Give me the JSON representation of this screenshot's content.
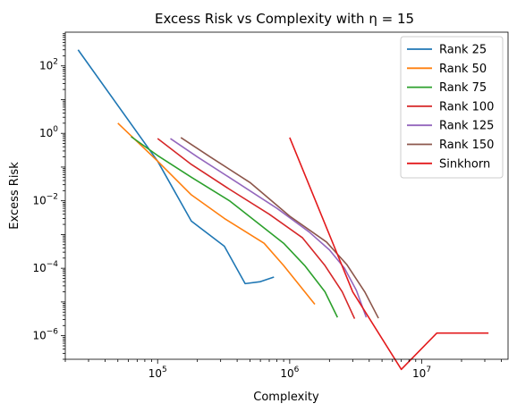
{
  "chart_data": {
    "type": "line",
    "title": "Excess Risk vs Complexity with η = 15",
    "xlabel": "Complexity",
    "ylabel": "Excess Risk",
    "xscale": "log",
    "yscale": "log",
    "xlim": [
      20000,
      45000000
    ],
    "ylim": [
      2e-07,
      1000
    ],
    "legend": "top-right",
    "grid": false,
    "x_ticks": [
      {
        "value": 100000,
        "base": "10",
        "exp": "5"
      },
      {
        "value": 1000000,
        "base": "10",
        "exp": "6"
      },
      {
        "value": 10000000,
        "base": "10",
        "exp": "7"
      }
    ],
    "y_ticks": [
      {
        "value": 1e-06,
        "base": "10",
        "exp": "−6"
      },
      {
        "value": 0.0001,
        "base": "10",
        "exp": "−4"
      },
      {
        "value": 0.01,
        "base": "10",
        "exp": "−2"
      },
      {
        "value": 1,
        "base": "10",
        "exp": "0"
      },
      {
        "value": 100,
        "base": "10",
        "exp": "2"
      }
    ],
    "series": [
      {
        "name": "Rank 25",
        "color": "#1f77b4",
        "x": [
          25000,
          100000,
          180000,
          320000,
          460000,
          600000,
          760000
        ],
        "y": [
          300,
          0.15,
          0.0025,
          0.00045,
          3.5e-05,
          4e-05,
          5.5e-05
        ]
      },
      {
        "name": "Rank 50",
        "color": "#ff7f0e",
        "x": [
          50000,
          100000,
          180000,
          320000,
          640000,
          900000,
          1550000
        ],
        "y": [
          2,
          0.15,
          0.015,
          0.003,
          0.00055,
          0.00012,
          8.5e-06
        ]
      },
      {
        "name": "Rank 75",
        "color": "#2ca02c",
        "x": [
          63000,
          100000,
          180000,
          350000,
          900000,
          1300000,
          1850000,
          2300000
        ],
        "y": [
          0.8,
          0.22,
          0.05,
          0.01,
          0.00055,
          0.00012,
          2e-05,
          3.5e-06
        ]
      },
      {
        "name": "Rank 100",
        "color": "#d62728",
        "x": [
          100000,
          180000,
          350000,
          700000,
          1250000,
          1850000,
          2500000,
          3100000
        ],
        "y": [
          0.7,
          0.12,
          0.022,
          0.004,
          0.0008,
          0.00012,
          2e-05,
          3.2e-06
        ]
      },
      {
        "name": "Rank 125",
        "color": "#9467bd",
        "x": [
          125000,
          200000,
          400000,
          800000,
          1400000,
          2000000,
          2600000,
          3200000,
          3800000
        ],
        "y": [
          0.7,
          0.2,
          0.035,
          0.006,
          0.0012,
          0.00035,
          0.0001,
          2.2e-05,
          3.5e-06
        ]
      },
      {
        "name": "Rank 150",
        "color": "#8c564b",
        "x": [
          150000,
          250000,
          500000,
          1000000,
          1900000,
          2700000,
          3700000,
          4700000
        ],
        "y": [
          0.75,
          0.2,
          0.035,
          0.0035,
          0.0006,
          0.00013,
          2e-05,
          3.3e-06
        ]
      },
      {
        "name": "Sinkhorn",
        "color": "#e31a1c",
        "x": [
          1000000,
          3000000,
          7000000,
          13000000,
          32000000
        ],
        "y": [
          0.75,
          2e-05,
          1e-07,
          1.2e-06,
          1.2e-06
        ]
      }
    ]
  }
}
